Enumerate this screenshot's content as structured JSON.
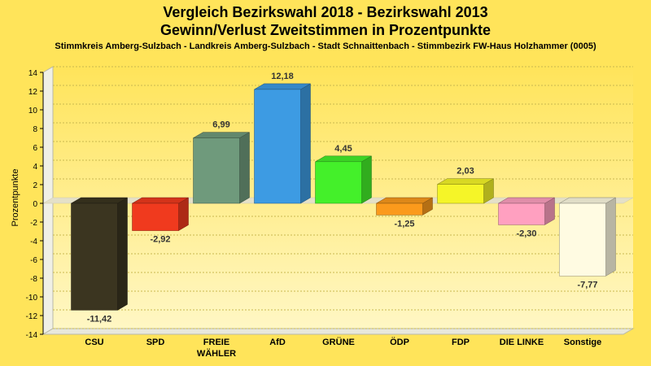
{
  "chart_data": {
    "type": "bar",
    "title": "Vergleich Bezirkswahl 2018 - Bezirkswahl 2013",
    "title2": "Gewinn/Verlust Zweitstimmen in Prozentpunkte",
    "subtitle": "Stimmkreis Amberg-Sulzbach - Landkreis Amberg-Sulzbach - Stadt Schnaittenbach - Stimmbezirk FW-Haus Holzhammer (0005)",
    "ylabel": "Prozentpunkte",
    "xlabel": "",
    "ylim": [
      -14,
      14
    ],
    "yticks": [
      "14",
      "12",
      "10",
      "8",
      "6",
      "4",
      "2",
      "0",
      "-2",
      "-4",
      "-6",
      "-8",
      "-10",
      "-12",
      "-14"
    ],
    "grid": true,
    "categories": [
      [
        "CSU"
      ],
      [
        "SPD"
      ],
      [
        "FREIE",
        "WÄHLER"
      ],
      [
        "AfD"
      ],
      [
        "GRÜNE"
      ],
      [
        "ÖDP"
      ],
      [
        "FDP"
      ],
      [
        "DIE LINKE"
      ],
      [
        "Sonstige"
      ]
    ],
    "values": [
      -11.42,
      -2.92,
      6.99,
      12.18,
      4.45,
      -1.25,
      2.03,
      -2.3,
      -7.77
    ],
    "value_labels": [
      "-11,42",
      "-2,92",
      "6,99",
      "12,18",
      "4,45",
      "-1,25",
      "2,03",
      "-2,30",
      "-7,77"
    ],
    "colors": [
      "#3b3520",
      "#f03a1e",
      "#6f9a7c",
      "#3d9be3",
      "#44f02a",
      "#fb9a1c",
      "#f5f528",
      "#ffa0c0",
      "#fffbe2"
    ],
    "background": "#ffe45a"
  }
}
